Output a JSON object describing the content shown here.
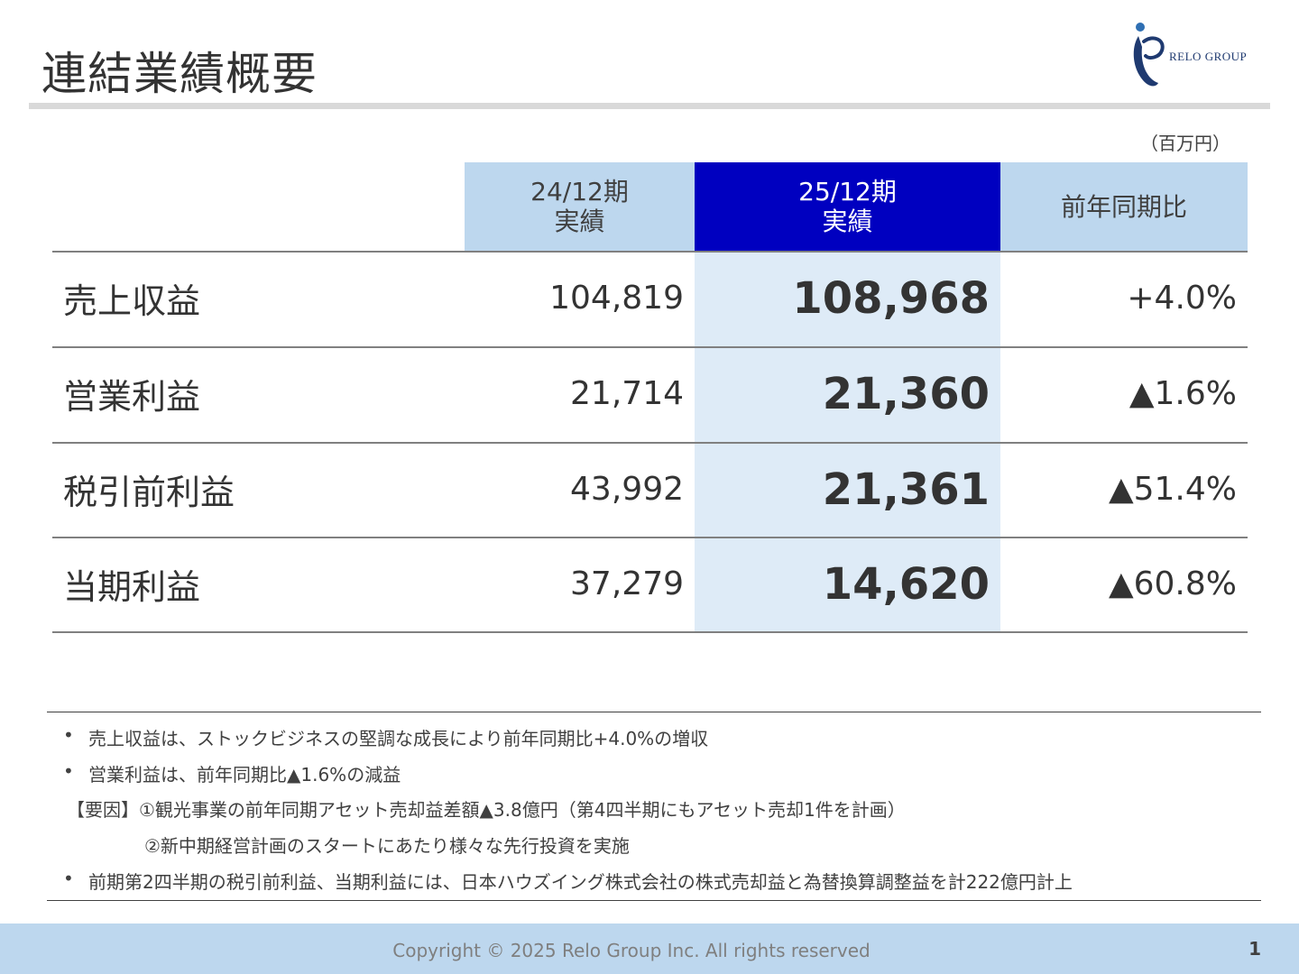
{
  "header": {
    "title": "連結業績概要",
    "logo_text": "RELO GROUP",
    "unit": "（百万円）"
  },
  "table": {
    "columns": {
      "prev": {
        "line1": "24/12期",
        "line2": "実績"
      },
      "curr": {
        "line1": "25/12期",
        "line2": "実績"
      },
      "yoy": "前年同期比"
    },
    "rows": [
      {
        "label": "売上収益",
        "prev": "104,819",
        "curr": "108,968",
        "yoy": "+4.0%"
      },
      {
        "label": "営業利益",
        "prev": "21,714",
        "curr": "21,360",
        "yoy": "▲1.6%"
      },
      {
        "label": "税引前利益",
        "prev": "43,992",
        "curr": "21,361",
        "yoy": "▲51.4%"
      },
      {
        "label": "当期利益",
        "prev": "37,279",
        "curr": "14,620",
        "yoy": "▲60.8%"
      }
    ]
  },
  "notes": {
    "bullet": "•",
    "n1": "売上収益は、ストックビジネスの堅調な成長により前年同期比+4.0%の増収",
    "n2": "営業利益は、前年同期比▲1.6%の減益",
    "n3": "【要因】①観光事業の前年同期アセット売却益差額▲3.8億円（第4四半期にもアセット売却1件を計画）",
    "n4": "②新中期経営計画のスタートにあたり様々な先行投資を実施",
    "n5": "前期第2四半期の税引前利益、当期利益には、日本ハウズイング株式会社の株式売却益と為替換算調整益を計222億円計上"
  },
  "footer": {
    "copyright": "Copyright © 2025 Relo Group Inc. All rights reserved",
    "page": "1"
  },
  "colors": {
    "header_light": "#bdd7ee",
    "header_current": "#0000c0",
    "current_column_fill": "#deebf7",
    "footer": "#bdd7ee"
  }
}
